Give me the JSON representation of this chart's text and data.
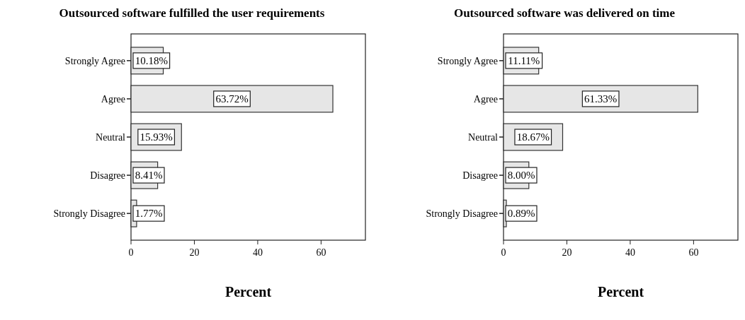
{
  "chart_data": [
    {
      "type": "bar",
      "orientation": "horizontal",
      "title": "Outsourced software fulfilled the user requirements",
      "xlabel": "Percent",
      "categories": [
        "Strongly Agree",
        "Agree",
        "Neutral",
        "Disagree",
        "Strongly Disagree"
      ],
      "values": [
        10.18,
        63.72,
        15.93,
        8.41,
        1.77
      ],
      "value_labels": [
        "10.18%",
        "63.72%",
        "15.93%",
        "8.41%",
        "1.77%"
      ],
      "color": "#e6e6e6",
      "xlim": [
        0,
        74
      ],
      "xticks": [
        0,
        20,
        40,
        60
      ],
      "grid": false
    },
    {
      "type": "bar",
      "orientation": "horizontal",
      "title": "Outsourced software was delivered on time",
      "xlabel": "Percent",
      "categories": [
        "Strongly Agree",
        "Agree",
        "Neutral",
        "Disagree",
        "Strongly Disagree"
      ],
      "values": [
        11.11,
        61.33,
        18.67,
        8.0,
        0.89
      ],
      "value_labels": [
        "11.11%",
        "61.33%",
        "18.67%",
        "8.00%",
        "0.89%"
      ],
      "color": "#e6e6e6",
      "xlim": [
        0,
        74
      ],
      "xticks": [
        0,
        20,
        40,
        60
      ],
      "grid": false
    }
  ]
}
